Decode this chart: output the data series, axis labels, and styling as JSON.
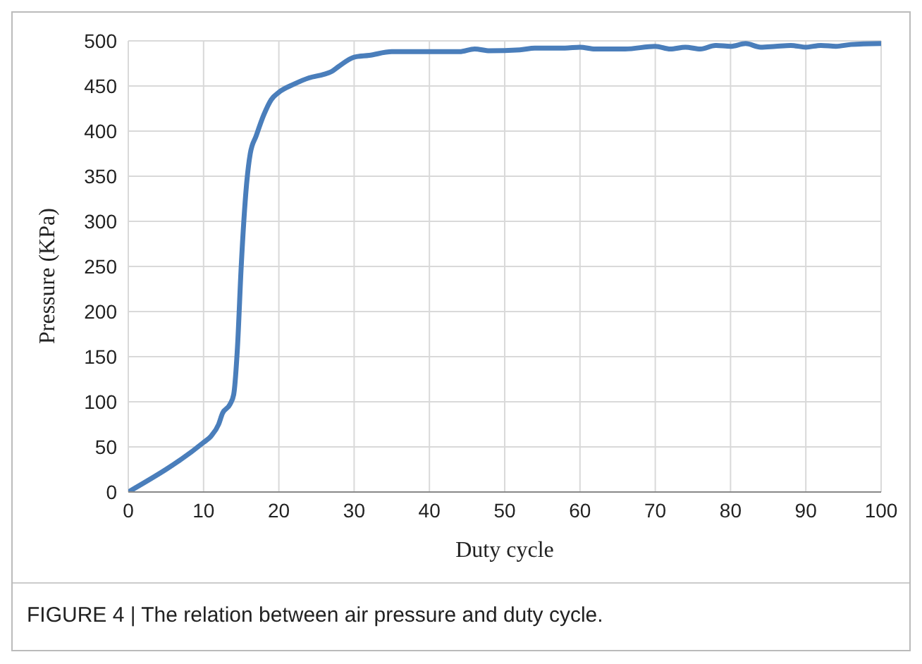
{
  "chart_data": {
    "type": "line",
    "xlabel": "Duty cycle",
    "ylabel": "Pressure (KPa)",
    "annotations": [
      "FIGURE 4 | The relation between air pressure and duty cycle."
    ],
    "x": [
      0,
      10,
      11,
      12,
      12.5,
      13.5,
      14,
      14.5,
      15,
      15.7,
      16.2,
      17,
      18,
      19,
      20,
      22,
      24,
      26,
      27,
      28,
      30,
      32,
      35,
      40,
      44,
      46,
      48,
      52,
      54,
      58,
      60,
      62,
      66,
      70,
      72,
      74,
      76,
      78,
      80,
      82,
      84,
      86,
      88,
      90,
      92,
      94,
      96,
      100
    ],
    "series": [
      {
        "color": "#4a7ebb",
        "values": [
          0,
          55,
          62,
          75,
          87,
          97,
          108,
          160,
          250,
          340,
          375,
          395,
          418,
          435,
          443,
          452,
          459,
          463,
          466,
          472,
          482,
          484,
          488,
          488,
          488,
          491,
          489,
          490,
          492,
          492,
          493,
          491,
          491,
          494,
          491,
          493,
          491,
          495,
          494,
          497,
          493,
          494,
          495,
          493,
          495,
          494,
          496,
          497
        ]
      }
    ],
    "xlim": [
      0,
      100
    ],
    "xticks": [
      0,
      10,
      20,
      30,
      40,
      50,
      60,
      70,
      80,
      90,
      100
    ],
    "ylim": [
      0,
      500
    ],
    "yticks": [
      0,
      50,
      100,
      150,
      200,
      250,
      300,
      350,
      400,
      450,
      500
    ],
    "grid": true,
    "legend": false,
    "marker": "none",
    "line_style": "solid"
  }
}
